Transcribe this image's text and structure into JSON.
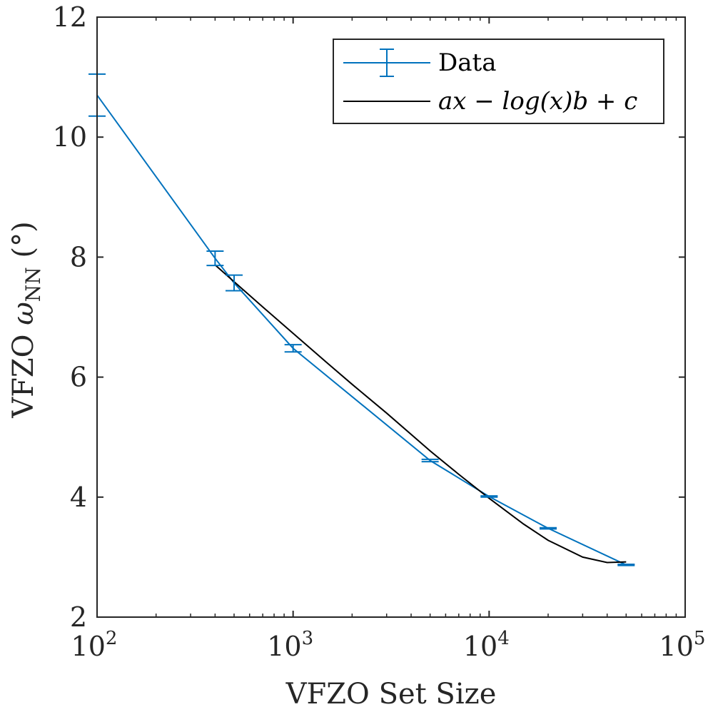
{
  "chart_data": {
    "type": "line",
    "xscale": "log",
    "xlabel": "VFZO Set Size",
    "ylabel_main": "VFZO ",
    "ylabel_symbol": "ω",
    "ylabel_subscript": "NN",
    "ylabel_unit": " (°)",
    "xlim": [
      100,
      100000
    ],
    "ylim": [
      2,
      12
    ],
    "x_ticks": [
      100,
      1000,
      10000,
      100000
    ],
    "x_tick_base": "10",
    "x_tick_exponents": [
      "2",
      "3",
      "4",
      "5"
    ],
    "y_ticks": [
      2,
      4,
      6,
      8,
      10,
      12
    ],
    "y_tick_labels": [
      "2",
      "4",
      "6",
      "8",
      "10",
      "12"
    ],
    "grid": false,
    "legend_position": "top-right",
    "colors": {
      "data": "#0072BD",
      "fit": "#000000",
      "axis": "#262626"
    },
    "series": [
      {
        "name": "Data",
        "style": "line-errorbar",
        "x": [
          100,
          400,
          500,
          1000,
          5000,
          10000,
          20000,
          50000
        ],
        "y": [
          10.7,
          7.98,
          7.57,
          6.48,
          4.61,
          4.01,
          3.48,
          2.87
        ],
        "err": [
          0.35,
          0.12,
          0.13,
          0.06,
          0.02,
          0.01,
          0.01,
          0.01
        ]
      },
      {
        "name": "ax − log(x)b + c",
        "style": "line",
        "x": [
          400,
          500,
          700,
          1000,
          1500,
          2000,
          3000,
          5000,
          7000,
          10000,
          15000,
          20000,
          30000,
          40000,
          50000
        ],
        "y": [
          7.87,
          7.59,
          7.17,
          6.73,
          6.23,
          5.88,
          5.4,
          4.77,
          4.38,
          3.98,
          3.55,
          3.28,
          3.0,
          2.91,
          2.92
        ]
      }
    ]
  }
}
